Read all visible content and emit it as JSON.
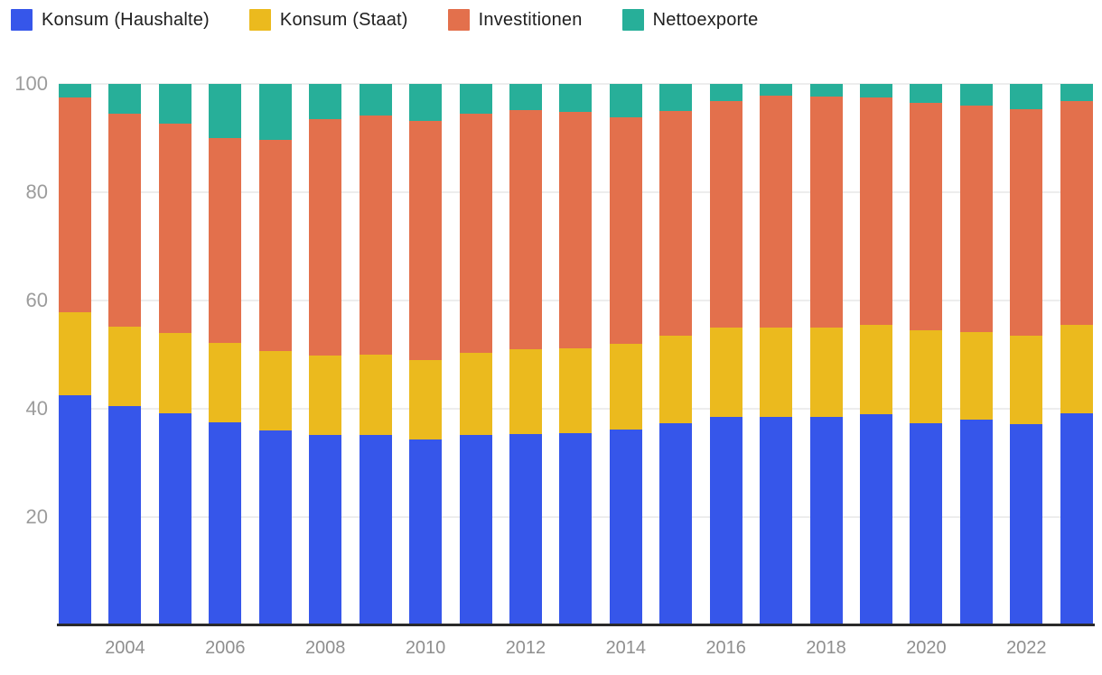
{
  "chart_data": {
    "type": "bar",
    "stacked": true,
    "normalized": true,
    "title": "",
    "xlabel": "",
    "ylabel": "",
    "ylim": [
      0,
      100
    ],
    "grid": true,
    "legend_position": "top-left",
    "y_ticks": [
      "20",
      "40",
      "60",
      "80",
      "100"
    ],
    "x_tick_labels": [
      "2004",
      "2006",
      "2008",
      "2010",
      "2012",
      "2014",
      "2016",
      "2018",
      "2020",
      "2022"
    ],
    "categories": [
      "2003",
      "2004",
      "2005",
      "2006",
      "2007",
      "2008",
      "2009",
      "2010",
      "2011",
      "2012",
      "2013",
      "2014",
      "2015",
      "2016",
      "2017",
      "2018",
      "2019",
      "2020",
      "2021",
      "2022",
      "2023"
    ],
    "series": [
      {
        "name": "Konsum (Haushalte)",
        "color": "#3656ea",
        "values": [
          42.5,
          40.5,
          39.2,
          37.5,
          36.0,
          35.2,
          35.2,
          34.3,
          35.2,
          35.3,
          35.5,
          36.2,
          37.3,
          38.5,
          38.5,
          38.5,
          39.0,
          37.3,
          38.0,
          37.2,
          39.2
        ]
      },
      {
        "name": "Konsum (Staat)",
        "color": "#ebba1e",
        "values": [
          15.3,
          14.7,
          14.8,
          14.7,
          14.7,
          14.6,
          14.8,
          14.7,
          15.1,
          15.7,
          15.7,
          15.8,
          16.2,
          16.5,
          16.5,
          16.5,
          16.5,
          17.2,
          16.2,
          16.3,
          16.3
        ]
      },
      {
        "name": "Investitionen",
        "color": "#e3704c",
        "values": [
          39.7,
          39.3,
          38.7,
          37.8,
          39.0,
          43.7,
          44.2,
          44.2,
          44.2,
          44.2,
          43.6,
          41.8,
          41.5,
          41.8,
          42.8,
          42.7,
          42.0,
          42.0,
          41.8,
          41.8,
          41.3
        ]
      },
      {
        "name": "Nettoexporte",
        "color": "#27af99",
        "values": [
          2.5,
          5.5,
          7.3,
          10.0,
          10.3,
          6.5,
          5.8,
          6.8,
          5.5,
          4.8,
          5.2,
          6.2,
          5.0,
          3.2,
          2.2,
          2.3,
          2.5,
          3.5,
          4.0,
          4.7,
          3.2
        ]
      }
    ],
    "colors": {
      "grid": "#ededed",
      "axis_line": "#2a2a2a",
      "y_tick_text": "#9c9c9c",
      "x_tick_text": "#8f8f8f",
      "legend_text": "#1e1e1e",
      "background": "#ffffff"
    }
  }
}
